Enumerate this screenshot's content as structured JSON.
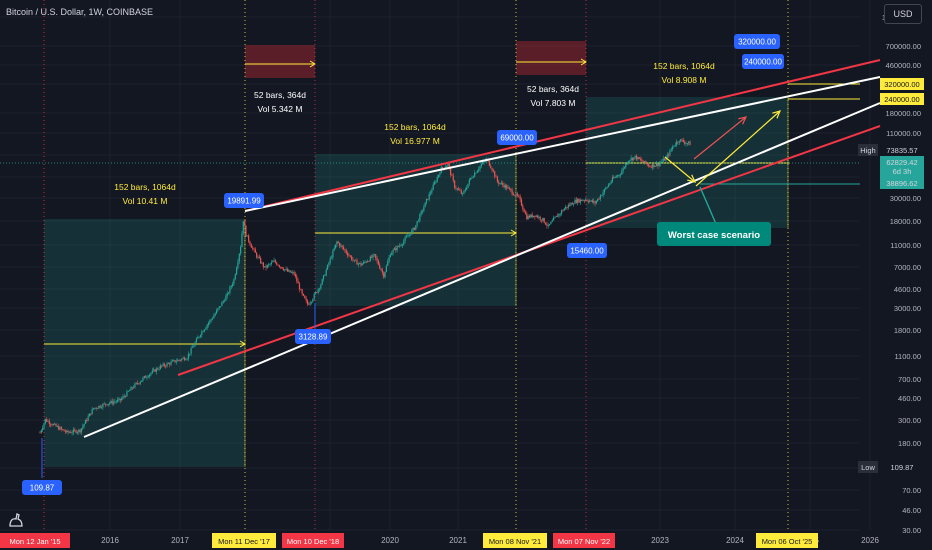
{
  "header": {
    "title": "Bitcoin / U.S. Dollar, 1W, COINBASE",
    "currency": "USD"
  },
  "chart_data": {
    "type": "candlestick",
    "y_scale": "log",
    "y_ticks": [
      "1100000.00",
      "700000.00",
      "460000.00",
      "320000.00",
      "180000.00",
      "110000.00",
      "70000.00",
      "46000.00",
      "30000.00",
      "18000.00",
      "11000.00",
      "7000.00",
      "4600.00",
      "3000.00",
      "1800.00",
      "1100.00",
      "700.00",
      "460.00",
      "300.00",
      "180.00",
      "110.00",
      "70.00",
      "46.00",
      "30.00"
    ],
    "x_ticks": [
      "2016",
      "2017",
      "2019",
      "2020",
      "2021",
      "2023",
      "2024",
      "2025",
      "2026"
    ],
    "x_markers": [
      {
        "label": "Mon 12 Jan '15",
        "color": "#f23645"
      },
      {
        "label": "Mon 11 Dec '17",
        "color": "#ffeb3b"
      },
      {
        "label": "Mon 10 Dec '18",
        "color": "#f23645"
      },
      {
        "label": "Mon 08 Nov '21",
        "color": "#ffeb3b"
      },
      {
        "label": "Mon 07 Nov '22",
        "color": "#f23645"
      },
      {
        "label": "Mon 06 Oct '25",
        "color": "#ffeb3b"
      }
    ],
    "price_labels": [
      {
        "label": "320000.00",
        "color": "#ffeb3b"
      },
      {
        "label": "240000.00",
        "color": "#ffeb3b"
      },
      {
        "label": "High",
        "color": "#2a2e39"
      },
      {
        "label": "73835.57",
        "color": "#131722"
      },
      {
        "label": "62829.42",
        "color": "#26a69a"
      },
      {
        "label": "6d 3h",
        "color": "#26a69a"
      },
      {
        "label": "38896.62",
        "color": "#26a69a"
      },
      {
        "label": "Low",
        "color": "#2a2e39"
      },
      {
        "label": "109.87",
        "color": "#131722"
      }
    ],
    "callouts": [
      "109.87",
      "19891.99",
      "3128.89",
      "69000.00",
      "15460.00",
      "320000.00",
      "240000.00"
    ],
    "annotations": [
      {
        "text": "152 bars, 1064d\nVol 10.41 M"
      },
      {
        "text": "52 bars, 364d\nVol 5.342 M"
      },
      {
        "text": "152 bars, 1064d\nVol 16.977 M"
      },
      {
        "text": "52 bars, 364d\nVol 7.803 M"
      },
      {
        "text": "152 bars, 1064d\nVol 8.908 M"
      }
    ],
    "label_box": "Worst case scenario",
    "colors": {
      "up": "#26a69a",
      "down": "#ef5350",
      "bg": "#131722",
      "grid": "#1e222d",
      "trend_red": "#f23645",
      "trend_white": "#ffffff",
      "measure": "#ffeb3b"
    }
  }
}
